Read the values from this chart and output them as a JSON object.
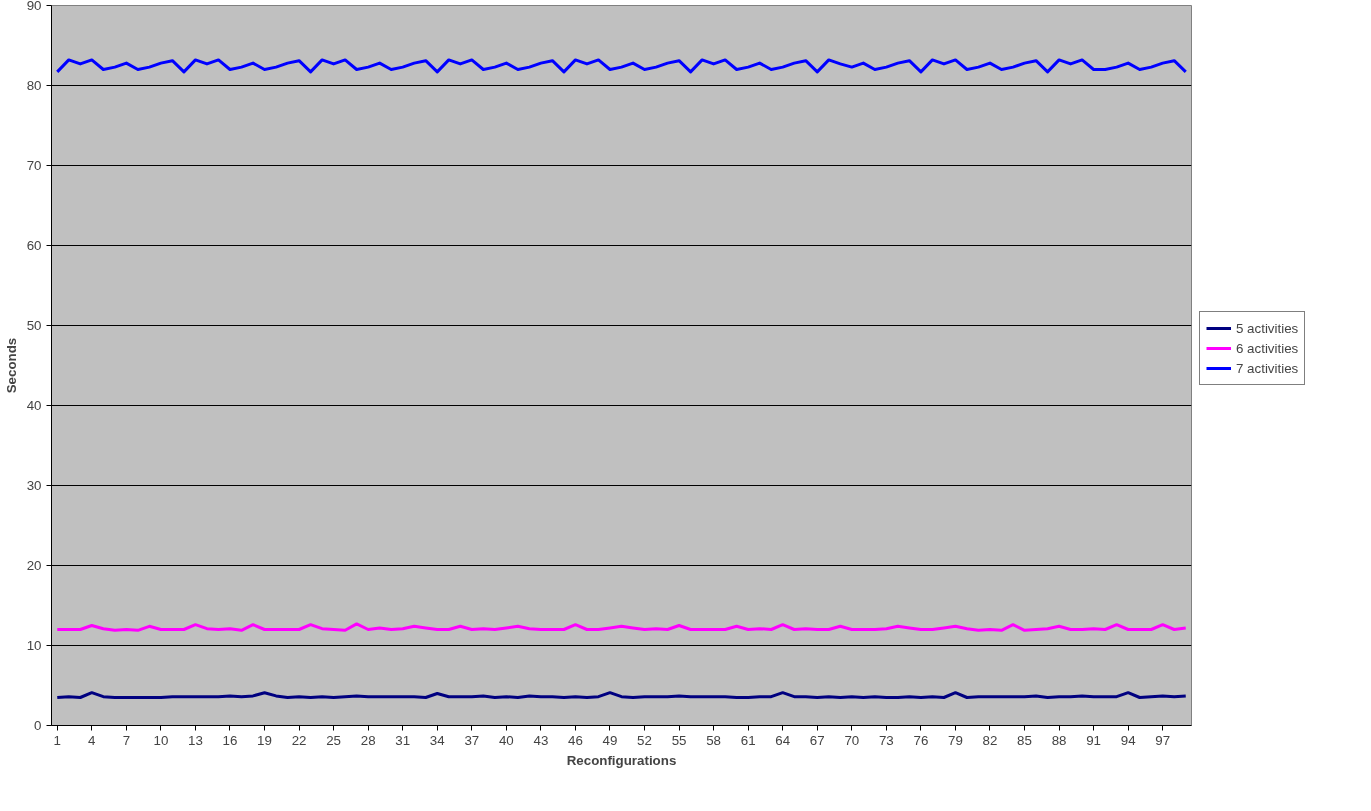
{
  "chart_data": {
    "type": "line",
    "xlabel": "Reconfigurations",
    "ylabel": "Seconds",
    "categories": [
      "1",
      null,
      null,
      "4",
      null,
      null,
      "7",
      null,
      null,
      "10",
      null,
      null,
      "13",
      null,
      null,
      "16",
      null,
      null,
      "19",
      null,
      null,
      "22",
      null,
      null,
      "25",
      null,
      null,
      "28",
      null,
      null,
      "31",
      null,
      null,
      "34",
      null,
      null,
      "37",
      null,
      null,
      "40",
      null,
      null,
      "43",
      null,
      null,
      "46",
      null,
      null,
      "49",
      null,
      null,
      "52",
      null,
      null,
      "55",
      null,
      null,
      "58",
      null,
      null,
      "61",
      null,
      null,
      "64",
      null,
      null,
      "67",
      null,
      null,
      "70",
      null,
      null,
      "73",
      null,
      null,
      "76",
      null,
      null,
      "79",
      null,
      null,
      "82",
      null,
      null,
      "85",
      null,
      null,
      "88",
      null,
      null,
      "91",
      null,
      null,
      "94",
      null,
      null,
      "97",
      null,
      null
    ],
    "series": [
      {
        "name": "5 activities",
        "color": "#000080",
        "values": [
          3.5,
          3.6,
          3.5,
          4.1,
          3.6,
          3.5,
          3.5,
          3.5,
          3.5,
          3.5,
          3.6,
          3.6,
          3.6,
          3.6,
          3.6,
          3.7,
          3.6,
          3.7,
          4.1,
          3.7,
          3.5,
          3.6,
          3.5,
          3.6,
          3.5,
          3.6,
          3.7,
          3.6,
          3.6,
          3.6,
          3.6,
          3.6,
          3.5,
          4.0,
          3.6,
          3.6,
          3.6,
          3.7,
          3.5,
          3.6,
          3.5,
          3.7,
          3.6,
          3.6,
          3.5,
          3.6,
          3.5,
          3.6,
          4.1,
          3.6,
          3.5,
          3.6,
          3.6,
          3.6,
          3.7,
          3.6,
          3.6,
          3.6,
          3.6,
          3.5,
          3.5,
          3.6,
          3.6,
          4.1,
          3.6,
          3.6,
          3.5,
          3.6,
          3.5,
          3.6,
          3.5,
          3.6,
          3.5,
          3.5,
          3.6,
          3.5,
          3.6,
          3.5,
          4.1,
          3.5,
          3.6,
          3.6,
          3.6,
          3.6,
          3.6,
          3.7,
          3.5,
          3.6,
          3.6,
          3.7,
          3.6,
          3.6,
          3.6,
          4.1,
          3.5,
          3.6,
          3.7,
          3.6,
          3.7
        ]
      },
      {
        "name": "6 activities",
        "color": "#ff00ff",
        "values": [
          12.0,
          12.0,
          12.0,
          12.5,
          12.1,
          11.9,
          12.0,
          11.9,
          12.4,
          12.0,
          12.0,
          12.0,
          12.6,
          12.1,
          12.0,
          12.1,
          11.9,
          12.6,
          12.0,
          12.0,
          12.0,
          12.0,
          12.6,
          12.1,
          12.0,
          11.9,
          12.7,
          12.0,
          12.2,
          12.0,
          12.1,
          12.4,
          12.2,
          12.0,
          12.0,
          12.4,
          12.0,
          12.1,
          12.0,
          12.2,
          12.4,
          12.1,
          12.0,
          12.0,
          12.0,
          12.6,
          12.0,
          12.0,
          12.2,
          12.4,
          12.2,
          12.0,
          12.1,
          12.0,
          12.5,
          12.0,
          12.0,
          12.0,
          12.0,
          12.4,
          12.0,
          12.1,
          12.0,
          12.6,
          12.0,
          12.1,
          12.0,
          12.0,
          12.4,
          12.0,
          12.0,
          12.0,
          12.1,
          12.4,
          12.2,
          12.0,
          12.0,
          12.2,
          12.4,
          12.1,
          11.9,
          12.0,
          11.9,
          12.6,
          11.9,
          12.0,
          12.1,
          12.4,
          12.0,
          12.0,
          12.1,
          12.0,
          12.6,
          12.0,
          12.0,
          12.0,
          12.6,
          12.0,
          12.2
        ]
      },
      {
        "name": "7 activities",
        "color": "#0000ff",
        "values": [
          81.7,
          83.2,
          82.7,
          83.2,
          82.0,
          82.3,
          82.8,
          82.0,
          82.3,
          82.8,
          83.1,
          81.7,
          83.2,
          82.7,
          83.2,
          82.0,
          82.3,
          82.8,
          82.0,
          82.3,
          82.8,
          83.1,
          81.7,
          83.2,
          82.7,
          83.2,
          82.0,
          82.3,
          82.8,
          82.0,
          82.3,
          82.8,
          83.1,
          81.7,
          83.2,
          82.7,
          83.2,
          82.0,
          82.3,
          82.8,
          82.0,
          82.3,
          82.8,
          83.1,
          81.7,
          83.2,
          82.7,
          83.2,
          82.0,
          82.3,
          82.8,
          82.0,
          82.3,
          82.8,
          83.1,
          81.7,
          83.2,
          82.7,
          83.2,
          82.0,
          82.3,
          82.8,
          82.0,
          82.3,
          82.8,
          83.1,
          81.7,
          83.2,
          82.7,
          82.3,
          82.8,
          82.0,
          82.3,
          82.8,
          83.1,
          81.7,
          83.2,
          82.7,
          83.2,
          82.0,
          82.3,
          82.8,
          82.0,
          82.3,
          82.8,
          83.1,
          81.7,
          83.2,
          82.7,
          83.2,
          82.0,
          82.0,
          82.3,
          82.8,
          82.0,
          82.3,
          82.8,
          83.1,
          81.7
        ]
      }
    ],
    "ylim": [
      0,
      90
    ],
    "yticks": [
      0,
      10,
      20,
      30,
      40,
      50,
      60,
      70,
      80,
      90
    ],
    "grid": "y",
    "legend": "right",
    "marker": "none",
    "line_style": "solid"
  }
}
